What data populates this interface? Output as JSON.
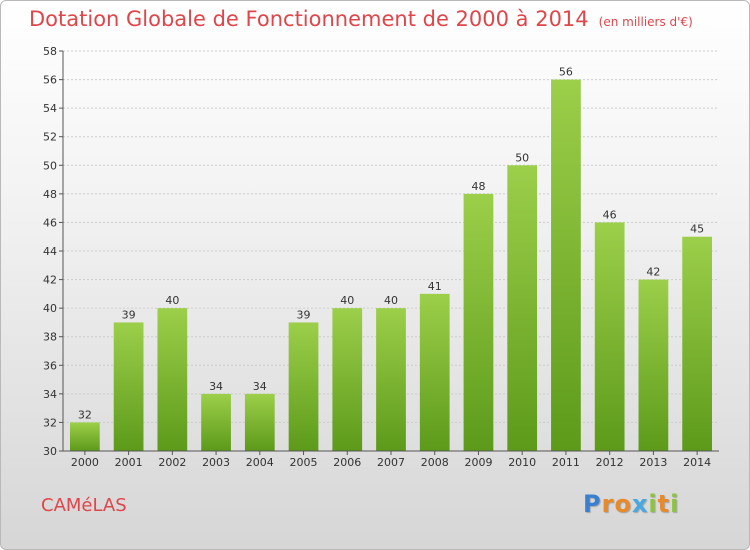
{
  "chart_data": {
    "type": "bar",
    "title": "Dotation Globale de Fonctionnement de 2000 à 2014",
    "subtitle": "(en milliers d'€)",
    "categories": [
      "2000",
      "2001",
      "2002",
      "2003",
      "2004",
      "2005",
      "2006",
      "2007",
      "2008",
      "2009",
      "2010",
      "2011",
      "2012",
      "2013",
      "2014"
    ],
    "values": [
      32,
      39,
      40,
      34,
      34,
      39,
      40,
      40,
      41,
      48,
      50,
      56,
      46,
      42,
      45
    ],
    "ylim": [
      30,
      58
    ],
    "yticks": [
      30,
      32,
      34,
      36,
      38,
      40,
      42,
      44,
      46,
      48,
      50,
      52,
      54,
      56,
      58
    ],
    "grid": true,
    "bar_color_top": "#9ccf4a",
    "bar_color_bottom": "#5d9a1a"
  },
  "commune": "CAMéLAS",
  "logo": {
    "letters": [
      {
        "ch": "P",
        "color": "#3a7fd0"
      },
      {
        "ch": "r",
        "color": "#e8892a"
      },
      {
        "ch": "o",
        "color": "#e8892a"
      },
      {
        "ch": "x",
        "color": "#49a8e0"
      },
      {
        "ch": "i",
        "color": "#8cc43f"
      },
      {
        "ch": "t",
        "color": "#e8892a"
      },
      {
        "ch": "i",
        "color": "#8cc43f"
      }
    ]
  },
  "colors": {
    "title": "#e0454a",
    "axis": "#555555",
    "grid": "#cccccc"
  }
}
